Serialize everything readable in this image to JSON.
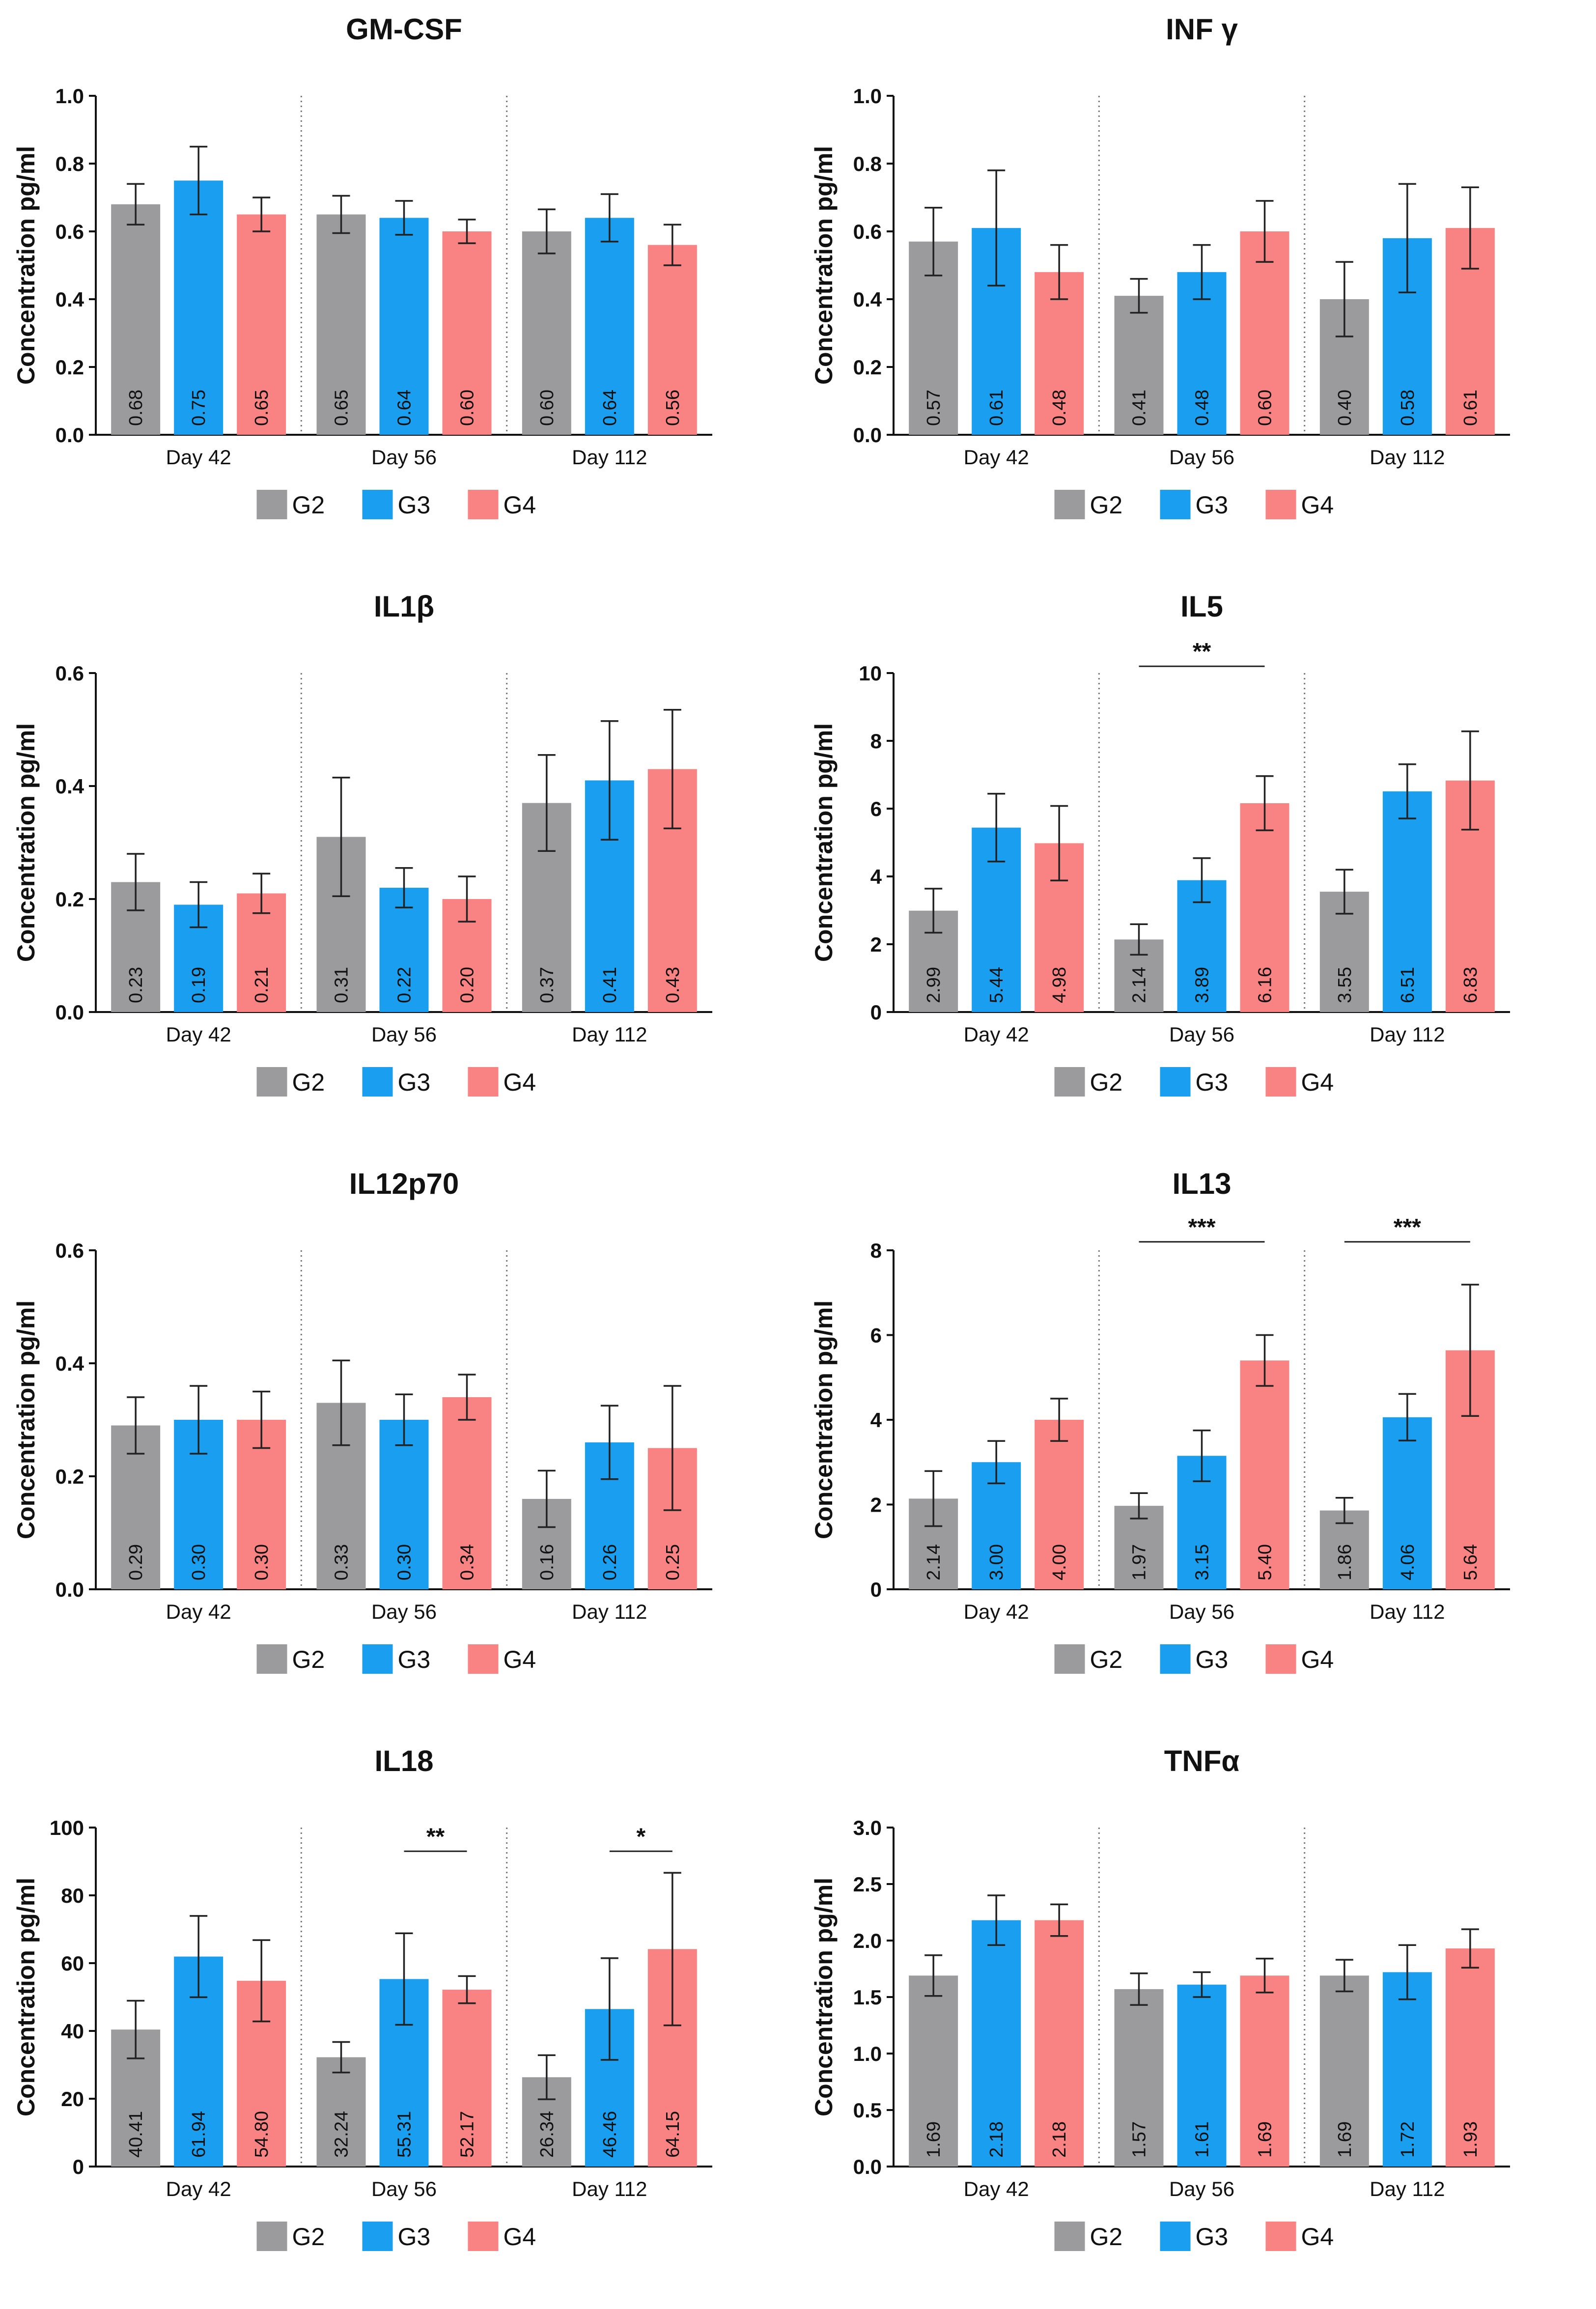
{
  "legend": [
    "G2",
    "G3",
    "G4"
  ],
  "colors": {
    "G2": "#9b9b9e",
    "G3": "#1a9ff0",
    "G4": "#f98282"
  },
  "chart_data": [
    {
      "type": "bar",
      "title": "GM-CSF",
      "ylabel": "Concentration pg/ml",
      "ylim": [
        0,
        1.0
      ],
      "yticks": [
        "0.0",
        "0.2",
        "0.4",
        "0.6",
        "0.8",
        "1.0"
      ],
      "categories": [
        "Day 42",
        "Day 56",
        "Day 112"
      ],
      "series": [
        {
          "name": "G2",
          "values": [
            0.68,
            0.65,
            0.6
          ],
          "labels": [
            "0.68",
            "0.65",
            "0.60"
          ],
          "err": [
            0.06,
            0.055,
            0.065
          ]
        },
        {
          "name": "G3",
          "values": [
            0.75,
            0.64,
            0.64
          ],
          "labels": [
            "0.75",
            "0.64",
            "0.64"
          ],
          "err": [
            0.1,
            0.05,
            0.07
          ]
        },
        {
          "name": "G4",
          "values": [
            0.65,
            0.6,
            0.56
          ],
          "labels": [
            "0.65",
            "0.60",
            "0.56"
          ],
          "err": [
            0.05,
            0.035,
            0.06
          ]
        }
      ],
      "significance": []
    },
    {
      "type": "bar",
      "title": "INF γ",
      "ylabel": "Concentration pg/ml",
      "ylim": [
        0,
        1.0
      ],
      "yticks": [
        "0.0",
        "0.2",
        "0.4",
        "0.6",
        "0.8",
        "1.0"
      ],
      "categories": [
        "Day 42",
        "Day 56",
        "Day 112"
      ],
      "series": [
        {
          "name": "G2",
          "values": [
            0.57,
            0.41,
            0.4
          ],
          "labels": [
            "0.57",
            "0.41",
            "0.40"
          ],
          "err": [
            0.1,
            0.05,
            0.11
          ]
        },
        {
          "name": "G3",
          "values": [
            0.61,
            0.48,
            0.58
          ],
          "labels": [
            "0.61",
            "0.48",
            "0.58"
          ],
          "err": [
            0.17,
            0.08,
            0.16
          ]
        },
        {
          "name": "G4",
          "values": [
            0.48,
            0.6,
            0.61
          ],
          "labels": [
            "0.48",
            "0.60",
            "0.61"
          ],
          "err": [
            0.08,
            0.09,
            0.12
          ]
        }
      ],
      "significance": []
    },
    {
      "type": "bar",
      "title": "IL1β",
      "ylabel": "Concentration pg/ml",
      "ylim": [
        0,
        0.6
      ],
      "yticks": [
        "0.0",
        "0.2",
        "0.4",
        "0.6"
      ],
      "categories": [
        "Day 42",
        "Day 56",
        "Day 112"
      ],
      "series": [
        {
          "name": "G2",
          "values": [
            0.23,
            0.31,
            0.37
          ],
          "labels": [
            "0.23",
            "0.31",
            "0.37"
          ],
          "err": [
            0.05,
            0.105,
            0.085
          ]
        },
        {
          "name": "G3",
          "values": [
            0.19,
            0.22,
            0.41
          ],
          "labels": [
            "0.19",
            "0.22",
            "0.41"
          ],
          "err": [
            0.04,
            0.035,
            0.105
          ]
        },
        {
          "name": "G4",
          "values": [
            0.21,
            0.2,
            0.43
          ],
          "labels": [
            "0.21",
            "0.20",
            "0.43"
          ],
          "err": [
            0.035,
            0.04,
            0.105
          ]
        }
      ],
      "significance": []
    },
    {
      "type": "bar",
      "title": "IL5",
      "ylabel": "Concentration pg/ml",
      "ylim": [
        0,
        10
      ],
      "yticks": [
        "0",
        "2",
        "4",
        "6",
        "8",
        "10"
      ],
      "categories": [
        "Day 42",
        "Day 56",
        "Day 112"
      ],
      "series": [
        {
          "name": "G2",
          "values": [
            2.99,
            2.14,
            3.55
          ],
          "labels": [
            "2.99",
            "2.14",
            "3.55"
          ],
          "err": [
            0.65,
            0.45,
            0.65
          ]
        },
        {
          "name": "G3",
          "values": [
            5.44,
            3.89,
            6.51
          ],
          "labels": [
            "5.44",
            "3.89",
            "6.51"
          ],
          "err": [
            1.0,
            0.65,
            0.8
          ]
        },
        {
          "name": "G4",
          "values": [
            4.98,
            6.16,
            6.83
          ],
          "labels": [
            "4.98",
            "6.16",
            "6.83"
          ],
          "err": [
            1.1,
            0.8,
            1.45
          ]
        }
      ],
      "significance": [
        {
          "group": 1,
          "from": 0,
          "to": 2,
          "y": 10.2,
          "label": "**"
        }
      ]
    },
    {
      "type": "bar",
      "title": "IL12p70",
      "ylabel": "Concentration pg/ml",
      "ylim": [
        0,
        0.6
      ],
      "yticks": [
        "0.0",
        "0.2",
        "0.4",
        "0.6"
      ],
      "categories": [
        "Day 42",
        "Day 56",
        "Day 112"
      ],
      "series": [
        {
          "name": "G2",
          "values": [
            0.29,
            0.33,
            0.16
          ],
          "labels": [
            "0.29",
            "0.33",
            "0.16"
          ],
          "err": [
            0.05,
            0.075,
            0.05
          ]
        },
        {
          "name": "G3",
          "values": [
            0.3,
            0.3,
            0.26
          ],
          "labels": [
            "0.30",
            "0.30",
            "0.26"
          ],
          "err": [
            0.06,
            0.045,
            0.065
          ]
        },
        {
          "name": "G4",
          "values": [
            0.3,
            0.34,
            0.25
          ],
          "labels": [
            "0.30",
            "0.34",
            "0.25"
          ],
          "err": [
            0.05,
            0.04,
            0.11
          ]
        }
      ],
      "significance": []
    },
    {
      "type": "bar",
      "title": "IL13",
      "ylabel": "Concentration pg/ml",
      "ylim": [
        0,
        8
      ],
      "yticks": [
        "0",
        "2",
        "4",
        "6",
        "8"
      ],
      "categories": [
        "Day 42",
        "Day 56",
        "Day 112"
      ],
      "series": [
        {
          "name": "G2",
          "values": [
            2.14,
            1.97,
            1.86
          ],
          "labels": [
            "2.14",
            "1.97",
            "1.86"
          ],
          "err": [
            0.65,
            0.3,
            0.3
          ]
        },
        {
          "name": "G3",
          "values": [
            3.0,
            3.15,
            4.06
          ],
          "labels": [
            "3.00",
            "3.15",
            "4.06"
          ],
          "err": [
            0.5,
            0.6,
            0.55
          ]
        },
        {
          "name": "G4",
          "values": [
            4.0,
            5.4,
            5.64
          ],
          "labels": [
            "4.00",
            "5.40",
            "5.64"
          ],
          "err": [
            0.5,
            0.6,
            1.55
          ]
        }
      ],
      "significance": [
        {
          "group": 1,
          "from": 0,
          "to": 2,
          "y": 8.2,
          "label": "***"
        },
        {
          "group": 2,
          "from": 0,
          "to": 2,
          "y": 8.2,
          "label": "***"
        }
      ]
    },
    {
      "type": "bar",
      "title": "IL18",
      "ylabel": "Concentration pg/ml",
      "ylim": [
        0,
        100
      ],
      "yticks": [
        "0",
        "20",
        "40",
        "60",
        "80",
        "100"
      ],
      "categories": [
        "Day 42",
        "Day 56",
        "Day 112"
      ],
      "series": [
        {
          "name": "G2",
          "values": [
            40.41,
            32.24,
            26.34
          ],
          "labels": [
            "40.41",
            "32.24",
            "26.34"
          ],
          "err": [
            8.5,
            4.5,
            6.5
          ]
        },
        {
          "name": "G3",
          "values": [
            61.94,
            55.31,
            46.46
          ],
          "labels": [
            "61.94",
            "55.31",
            "46.46"
          ],
          "err": [
            12,
            13.5,
            15
          ]
        },
        {
          "name": "G4",
          "values": [
            54.8,
            52.17,
            64.15
          ],
          "labels": [
            "54.80",
            "52.17",
            "64.15"
          ],
          "err": [
            12,
            4,
            22.5
          ]
        }
      ],
      "significance": [
        {
          "group": 1,
          "from": 1,
          "to": 2,
          "y": 93,
          "label": "**"
        },
        {
          "group": 2,
          "from": 1,
          "to": 2,
          "y": 93,
          "label": "*"
        }
      ]
    },
    {
      "type": "bar",
      "title": "TNFα",
      "ylabel": "Concentration pg/ml",
      "ylim": [
        0,
        3.0
      ],
      "yticks": [
        "0.0",
        "0.5",
        "1.0",
        "1.5",
        "2.0",
        "2.5",
        "3.0"
      ],
      "categories": [
        "Day 42",
        "Day 56",
        "Day 112"
      ],
      "series": [
        {
          "name": "G2",
          "values": [
            1.69,
            1.57,
            1.69
          ],
          "labels": [
            "1.69",
            "1.57",
            "1.69"
          ],
          "err": [
            0.18,
            0.14,
            0.14
          ]
        },
        {
          "name": "G3",
          "values": [
            2.18,
            1.61,
            1.72
          ],
          "labels": [
            "2.18",
            "1.61",
            "1.72"
          ],
          "err": [
            0.22,
            0.11,
            0.24
          ]
        },
        {
          "name": "G4",
          "values": [
            2.18,
            1.69,
            1.93
          ],
          "labels": [
            "2.18",
            "1.69",
            "1.93"
          ],
          "err": [
            0.14,
            0.15,
            0.17
          ]
        }
      ],
      "significance": []
    }
  ]
}
